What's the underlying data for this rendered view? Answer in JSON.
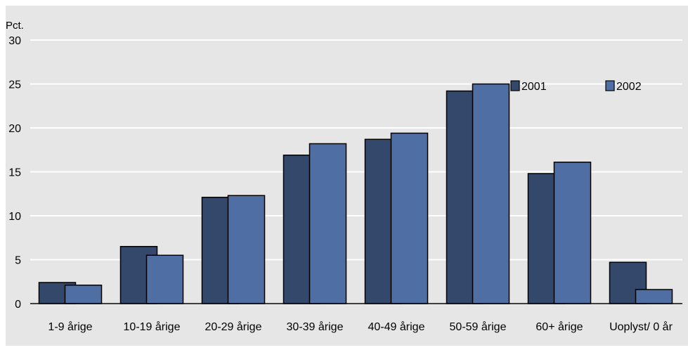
{
  "chart_data": {
    "type": "bar",
    "ylabel": "Pct.",
    "ylim": [
      0,
      30
    ],
    "yticks": [
      0,
      5,
      10,
      15,
      20,
      25,
      30
    ],
    "categories": [
      "1-9 årige",
      "10-19 årige",
      "20-29 årige",
      "30-39 årige",
      "40-49 årige",
      "50-59 årige",
      "60+ årige",
      "Uoplyst/ 0 år"
    ],
    "series": [
      {
        "name": "2001",
        "color": "#34486b",
        "values": [
          2.4,
          6.5,
          12.1,
          16.9,
          18.7,
          24.2,
          14.8,
          4.7
        ]
      },
      {
        "name": "2002",
        "color": "#4f6ea3",
        "values": [
          2.1,
          5.5,
          12.3,
          18.2,
          19.4,
          25.0,
          16.1,
          1.6
        ]
      }
    ],
    "grid": true,
    "legend_position": "top-right"
  }
}
